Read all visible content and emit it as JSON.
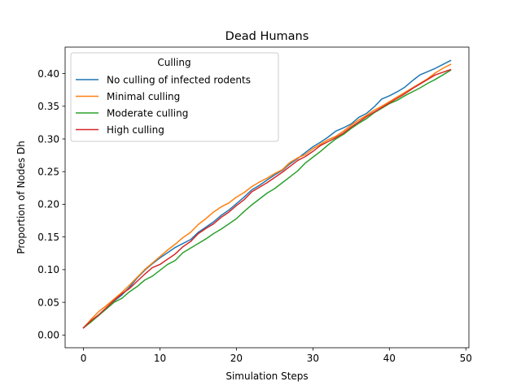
{
  "chart_data": {
    "type": "line",
    "title": "Dead Humans",
    "xlabel": "Simulation Steps",
    "ylabel": "Proportion of Nodes Dh",
    "xlim": [
      -2.4,
      50.4
    ],
    "ylim": [
      -0.0195,
      0.4405
    ],
    "xticks": [
      0,
      10,
      20,
      30,
      40,
      50
    ],
    "yticks": [
      0.0,
      0.05,
      0.1,
      0.15,
      0.2,
      0.25,
      0.3,
      0.35,
      0.4
    ],
    "ytick_labels": [
      "0.00",
      "0.05",
      "0.10",
      "0.15",
      "0.20",
      "0.25",
      "0.30",
      "0.35",
      "0.40"
    ],
    "grid": false,
    "legend": {
      "title": "Culling",
      "placement": "top-left"
    },
    "x": [
      0,
      1,
      2,
      3,
      4,
      5,
      6,
      7,
      8,
      9,
      10,
      11,
      12,
      13,
      14,
      15,
      16,
      17,
      18,
      19,
      20,
      21,
      22,
      23,
      24,
      25,
      26,
      27,
      28,
      29,
      30,
      31,
      32,
      33,
      34,
      35,
      36,
      37,
      38,
      39,
      40,
      41,
      42,
      43,
      44,
      45,
      46,
      47,
      48
    ],
    "series": [
      {
        "name": "No culling of infected rodents",
        "color": "#1f77b4",
        "values": [
          0.011,
          0.021,
          0.03,
          0.041,
          0.052,
          0.061,
          0.073,
          0.087,
          0.099,
          0.109,
          0.118,
          0.126,
          0.134,
          0.14,
          0.146,
          0.157,
          0.165,
          0.173,
          0.183,
          0.191,
          0.201,
          0.211,
          0.222,
          0.229,
          0.237,
          0.245,
          0.252,
          0.262,
          0.27,
          0.279,
          0.288,
          0.295,
          0.303,
          0.312,
          0.317,
          0.323,
          0.333,
          0.339,
          0.349,
          0.361,
          0.366,
          0.372,
          0.379,
          0.389,
          0.398,
          0.403,
          0.408,
          0.414,
          0.42
        ]
      },
      {
        "name": "Minimal culling",
        "color": "#ff7f0e",
        "values": [
          0.011,
          0.024,
          0.036,
          0.045,
          0.055,
          0.065,
          0.076,
          0.088,
          0.1,
          0.11,
          0.12,
          0.13,
          0.139,
          0.149,
          0.157,
          0.169,
          0.178,
          0.188,
          0.196,
          0.202,
          0.211,
          0.218,
          0.227,
          0.234,
          0.24,
          0.247,
          0.253,
          0.264,
          0.271,
          0.276,
          0.285,
          0.292,
          0.299,
          0.304,
          0.312,
          0.321,
          0.329,
          0.336,
          0.344,
          0.35,
          0.357,
          0.364,
          0.371,
          0.378,
          0.385,
          0.392,
          0.401,
          0.408,
          0.414
        ]
      },
      {
        "name": "Moderate culling",
        "color": "#2ca02c",
        "values": [
          0.011,
          0.02,
          0.03,
          0.04,
          0.05,
          0.056,
          0.066,
          0.074,
          0.084,
          0.09,
          0.099,
          0.108,
          0.114,
          0.126,
          0.133,
          0.14,
          0.147,
          0.155,
          0.162,
          0.17,
          0.178,
          0.189,
          0.199,
          0.208,
          0.217,
          0.224,
          0.233,
          0.242,
          0.251,
          0.263,
          0.272,
          0.281,
          0.291,
          0.3,
          0.307,
          0.316,
          0.324,
          0.331,
          0.34,
          0.347,
          0.354,
          0.359,
          0.366,
          0.372,
          0.378,
          0.385,
          0.391,
          0.398,
          0.405
        ]
      },
      {
        "name": "High culling",
        "color": "#d62728",
        "values": [
          0.011,
          0.022,
          0.031,
          0.042,
          0.053,
          0.063,
          0.071,
          0.082,
          0.093,
          0.103,
          0.108,
          0.116,
          0.124,
          0.135,
          0.143,
          0.155,
          0.163,
          0.17,
          0.18,
          0.188,
          0.198,
          0.207,
          0.219,
          0.226,
          0.233,
          0.241,
          0.249,
          0.258,
          0.267,
          0.273,
          0.281,
          0.29,
          0.296,
          0.302,
          0.309,
          0.318,
          0.326,
          0.334,
          0.341,
          0.348,
          0.355,
          0.362,
          0.369,
          0.377,
          0.384,
          0.391,
          0.398,
          0.402,
          0.406
        ]
      }
    ]
  }
}
